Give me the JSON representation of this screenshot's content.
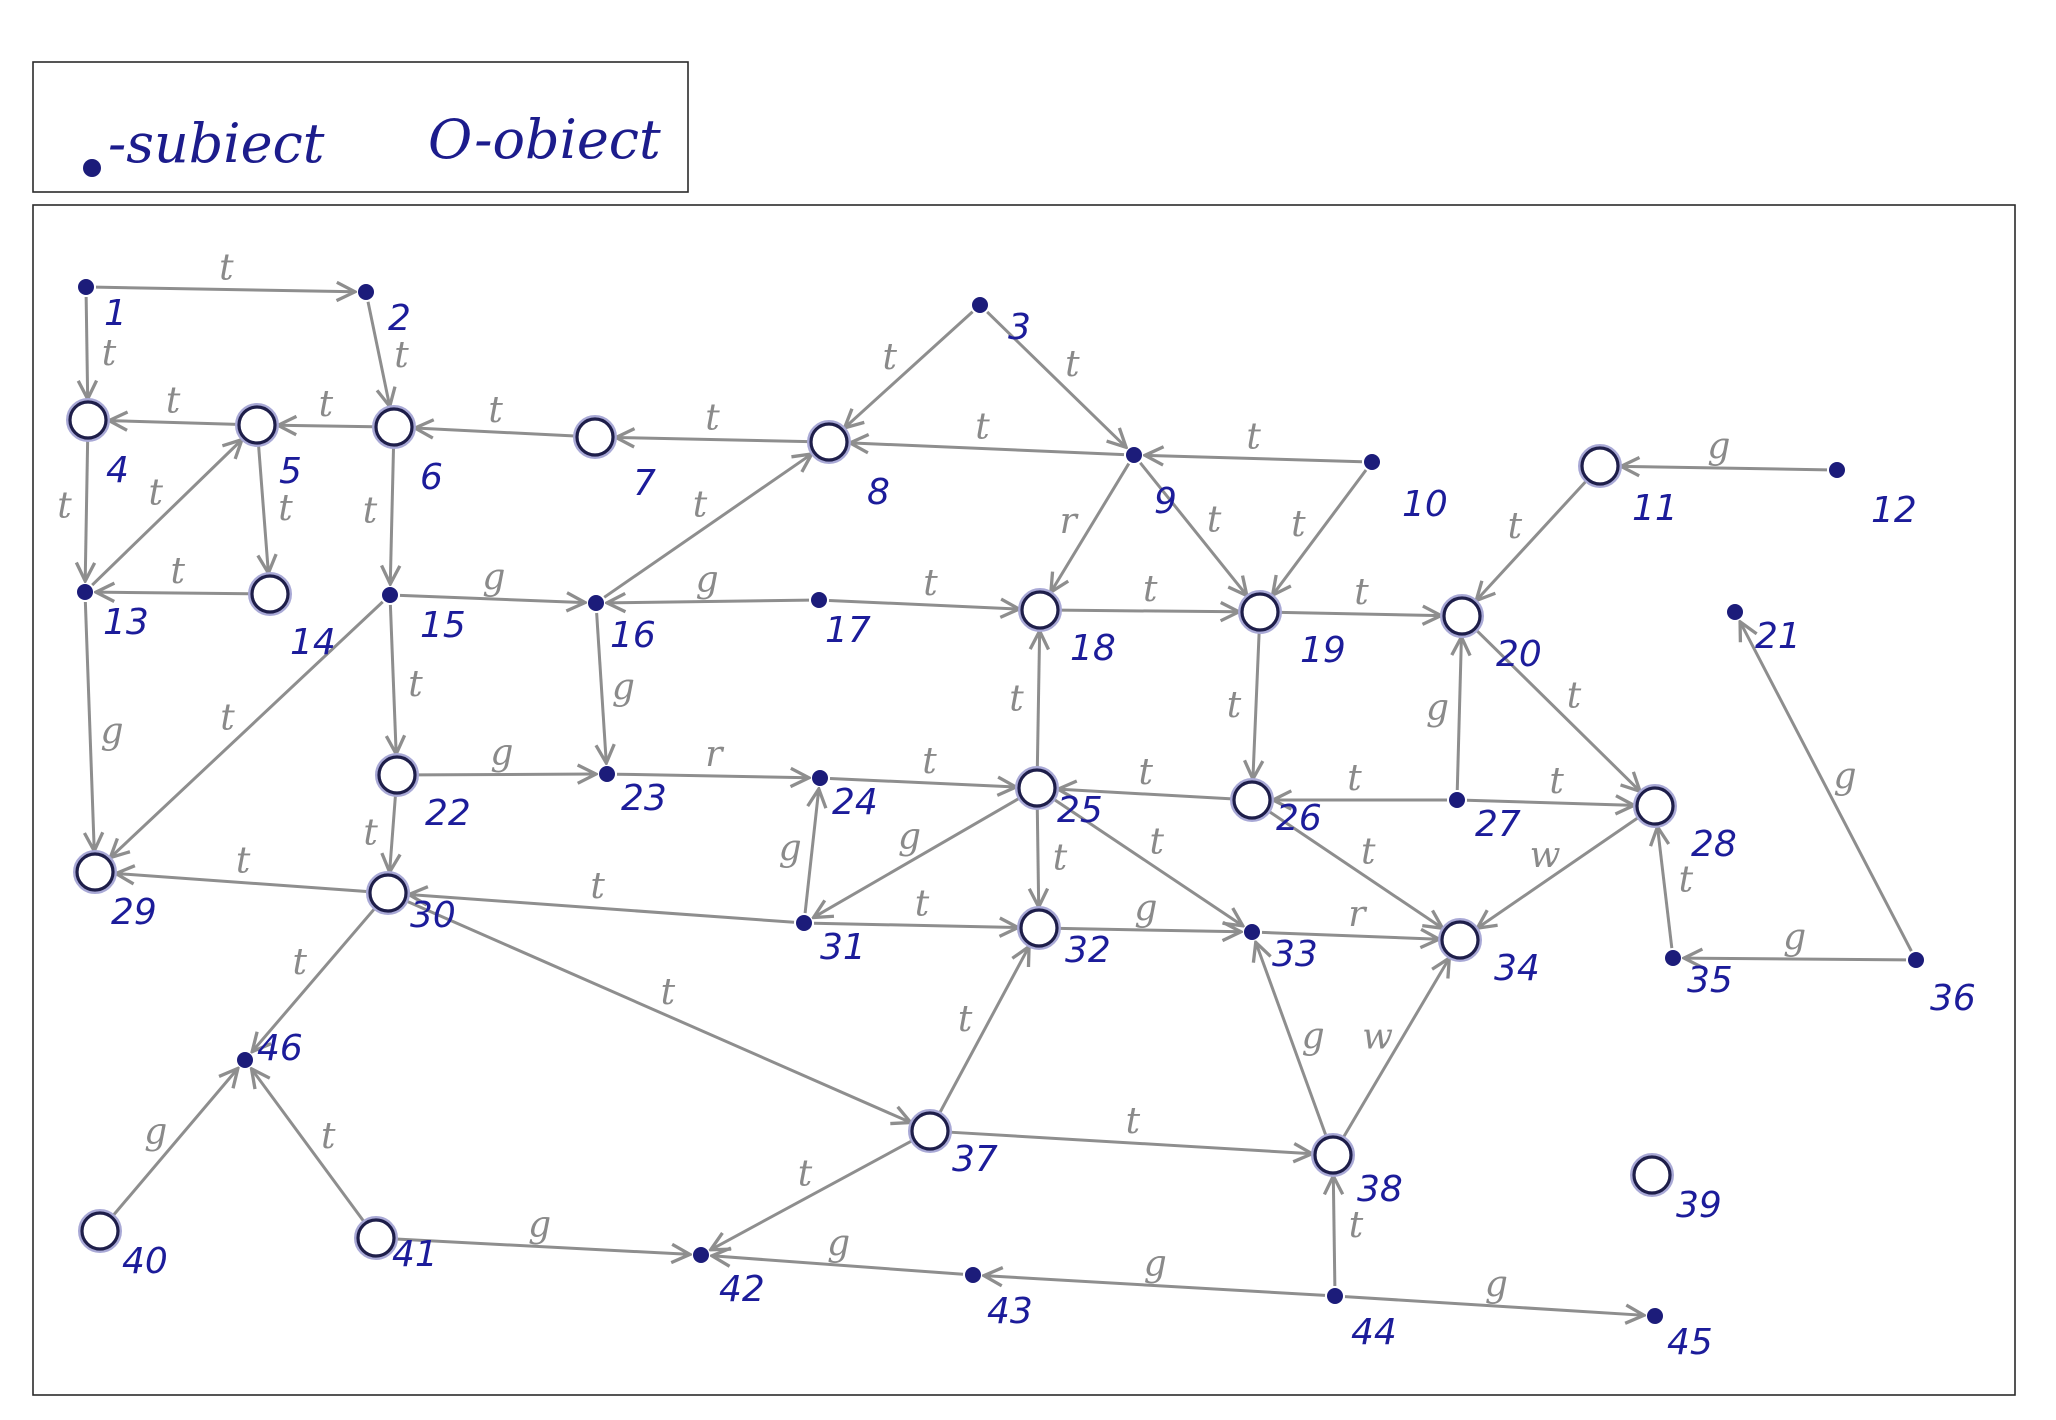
{
  "legend": {
    "subject_label": "-subiect",
    "object_label": "O-obiect"
  },
  "colors": {
    "edge": "#8e8e8e",
    "node": "#1c1c7a",
    "label": "#1c1c9a",
    "edge_label": "#8a8a8a"
  },
  "nodes": [
    {
      "id": "1",
      "kind": "subject"
    },
    {
      "id": "2",
      "kind": "subject"
    },
    {
      "id": "3",
      "kind": "subject"
    },
    {
      "id": "4",
      "kind": "object"
    },
    {
      "id": "5",
      "kind": "object"
    },
    {
      "id": "6",
      "kind": "object"
    },
    {
      "id": "7",
      "kind": "object"
    },
    {
      "id": "8",
      "kind": "object"
    },
    {
      "id": "9",
      "kind": "subject"
    },
    {
      "id": "10",
      "kind": "subject"
    },
    {
      "id": "11",
      "kind": "object"
    },
    {
      "id": "12",
      "kind": "subject"
    },
    {
      "id": "13",
      "kind": "subject"
    },
    {
      "id": "14",
      "kind": "object"
    },
    {
      "id": "15",
      "kind": "subject"
    },
    {
      "id": "16",
      "kind": "subject"
    },
    {
      "id": "17",
      "kind": "subject"
    },
    {
      "id": "18",
      "kind": "object"
    },
    {
      "id": "19",
      "kind": "object"
    },
    {
      "id": "20",
      "kind": "object"
    },
    {
      "id": "21",
      "kind": "subject"
    },
    {
      "id": "22",
      "kind": "object"
    },
    {
      "id": "23",
      "kind": "subject"
    },
    {
      "id": "24",
      "kind": "subject"
    },
    {
      "id": "25",
      "kind": "object"
    },
    {
      "id": "26",
      "kind": "object"
    },
    {
      "id": "27",
      "kind": "subject"
    },
    {
      "id": "28",
      "kind": "object"
    },
    {
      "id": "29",
      "kind": "object"
    },
    {
      "id": "30",
      "kind": "object"
    },
    {
      "id": "31",
      "kind": "subject"
    },
    {
      "id": "32",
      "kind": "object"
    },
    {
      "id": "33",
      "kind": "subject"
    },
    {
      "id": "34",
      "kind": "object"
    },
    {
      "id": "35",
      "kind": "subject"
    },
    {
      "id": "36",
      "kind": "subject"
    },
    {
      "id": "37",
      "kind": "object"
    },
    {
      "id": "38",
      "kind": "object"
    },
    {
      "id": "39",
      "kind": "object"
    },
    {
      "id": "40",
      "kind": "object"
    },
    {
      "id": "41",
      "kind": "object"
    },
    {
      "id": "42",
      "kind": "subject"
    },
    {
      "id": "43",
      "kind": "subject"
    },
    {
      "id": "44",
      "kind": "subject"
    },
    {
      "id": "45",
      "kind": "subject"
    },
    {
      "id": "46",
      "kind": "subject"
    }
  ],
  "edges": [
    {
      "from": "1",
      "to": "2",
      "label": "t"
    },
    {
      "from": "1",
      "to": "4",
      "label": "t"
    },
    {
      "from": "2",
      "to": "6",
      "label": "t"
    },
    {
      "from": "5",
      "to": "4",
      "label": "t"
    },
    {
      "from": "6",
      "to": "5",
      "label": "t"
    },
    {
      "from": "7",
      "to": "6",
      "label": "t"
    },
    {
      "from": "8",
      "to": "7",
      "label": "t"
    },
    {
      "from": "3",
      "to": "8",
      "label": "t"
    },
    {
      "from": "3",
      "to": "9",
      "label": "t"
    },
    {
      "from": "9",
      "to": "8",
      "label": "t"
    },
    {
      "from": "10",
      "to": "9",
      "label": "t"
    },
    {
      "from": "12",
      "to": "11",
      "label": "g"
    },
    {
      "from": "4",
      "to": "13",
      "label": "t"
    },
    {
      "from": "13",
      "to": "5",
      "label": "t"
    },
    {
      "from": "5",
      "to": "14",
      "label": "t"
    },
    {
      "from": "14",
      "to": "13",
      "label": "t"
    },
    {
      "from": "6",
      "to": "15",
      "label": "t"
    },
    {
      "from": "15",
      "to": "16",
      "label": "g"
    },
    {
      "from": "16",
      "to": "8",
      "label": "t"
    },
    {
      "from": "17",
      "to": "16",
      "label": "g"
    },
    {
      "from": "17",
      "to": "18",
      "label": "t"
    },
    {
      "from": "9",
      "to": "18",
      "label": "r"
    },
    {
      "from": "9",
      "to": "19",
      "label": "t"
    },
    {
      "from": "10",
      "to": "19",
      "label": "t"
    },
    {
      "from": "18",
      "to": "19",
      "label": "t"
    },
    {
      "from": "19",
      "to": "20",
      "label": "t"
    },
    {
      "from": "11",
      "to": "20",
      "label": "t"
    },
    {
      "from": "36",
      "to": "21",
      "label": "g"
    },
    {
      "from": "13",
      "to": "29",
      "label": "g"
    },
    {
      "from": "15",
      "to": "29",
      "label": "t"
    },
    {
      "from": "15",
      "to": "22",
      "label": "t"
    },
    {
      "from": "16",
      "to": "23",
      "label": "g"
    },
    {
      "from": "22",
      "to": "23",
      "label": "g"
    },
    {
      "from": "23",
      "to": "24",
      "label": "r"
    },
    {
      "from": "24",
      "to": "25",
      "label": "t"
    },
    {
      "from": "25",
      "to": "18",
      "label": "t"
    },
    {
      "from": "26",
      "to": "25",
      "label": "t"
    },
    {
      "from": "19",
      "to": "26",
      "label": "t"
    },
    {
      "from": "27",
      "to": "26",
      "label": "t"
    },
    {
      "from": "27",
      "to": "20",
      "label": "g"
    },
    {
      "from": "27",
      "to": "28",
      "label": "t"
    },
    {
      "from": "20",
      "to": "28",
      "label": "t"
    },
    {
      "from": "22",
      "to": "30",
      "label": "t"
    },
    {
      "from": "30",
      "to": "29",
      "label": "t"
    },
    {
      "from": "31",
      "to": "30",
      "label": "t"
    },
    {
      "from": "31",
      "to": "24",
      "label": "g"
    },
    {
      "from": "25",
      "to": "31",
      "label": "g"
    },
    {
      "from": "31",
      "to": "32",
      "label": "t"
    },
    {
      "from": "25",
      "to": "32",
      "label": "t"
    },
    {
      "from": "25",
      "to": "33",
      "label": "t"
    },
    {
      "from": "32",
      "to": "33",
      "label": "g"
    },
    {
      "from": "33",
      "to": "34",
      "label": "r"
    },
    {
      "from": "26",
      "to": "34",
      "label": "t"
    },
    {
      "from": "28",
      "to": "34",
      "label": "w"
    },
    {
      "from": "35",
      "to": "28",
      "label": "t"
    },
    {
      "from": "36",
      "to": "35",
      "label": "g"
    },
    {
      "from": "30",
      "to": "46",
      "label": "t"
    },
    {
      "from": "30",
      "to": "37",
      "label": "t"
    },
    {
      "from": "37",
      "to": "32",
      "label": "t"
    },
    {
      "from": "37",
      "to": "38",
      "label": "t"
    },
    {
      "from": "38",
      "to": "33",
      "label": "g"
    },
    {
      "from": "38",
      "to": "34",
      "label": "w"
    },
    {
      "from": "40",
      "to": "46",
      "label": "g"
    },
    {
      "from": "41",
      "to": "46",
      "label": "t"
    },
    {
      "from": "37",
      "to": "42",
      "label": "t"
    },
    {
      "from": "41",
      "to": "42",
      "label": "g"
    },
    {
      "from": "43",
      "to": "42",
      "label": "g"
    },
    {
      "from": "44",
      "to": "43",
      "label": "g"
    },
    {
      "from": "44",
      "to": "38",
      "label": "t"
    },
    {
      "from": "44",
      "to": "45",
      "label": "g"
    }
  ]
}
